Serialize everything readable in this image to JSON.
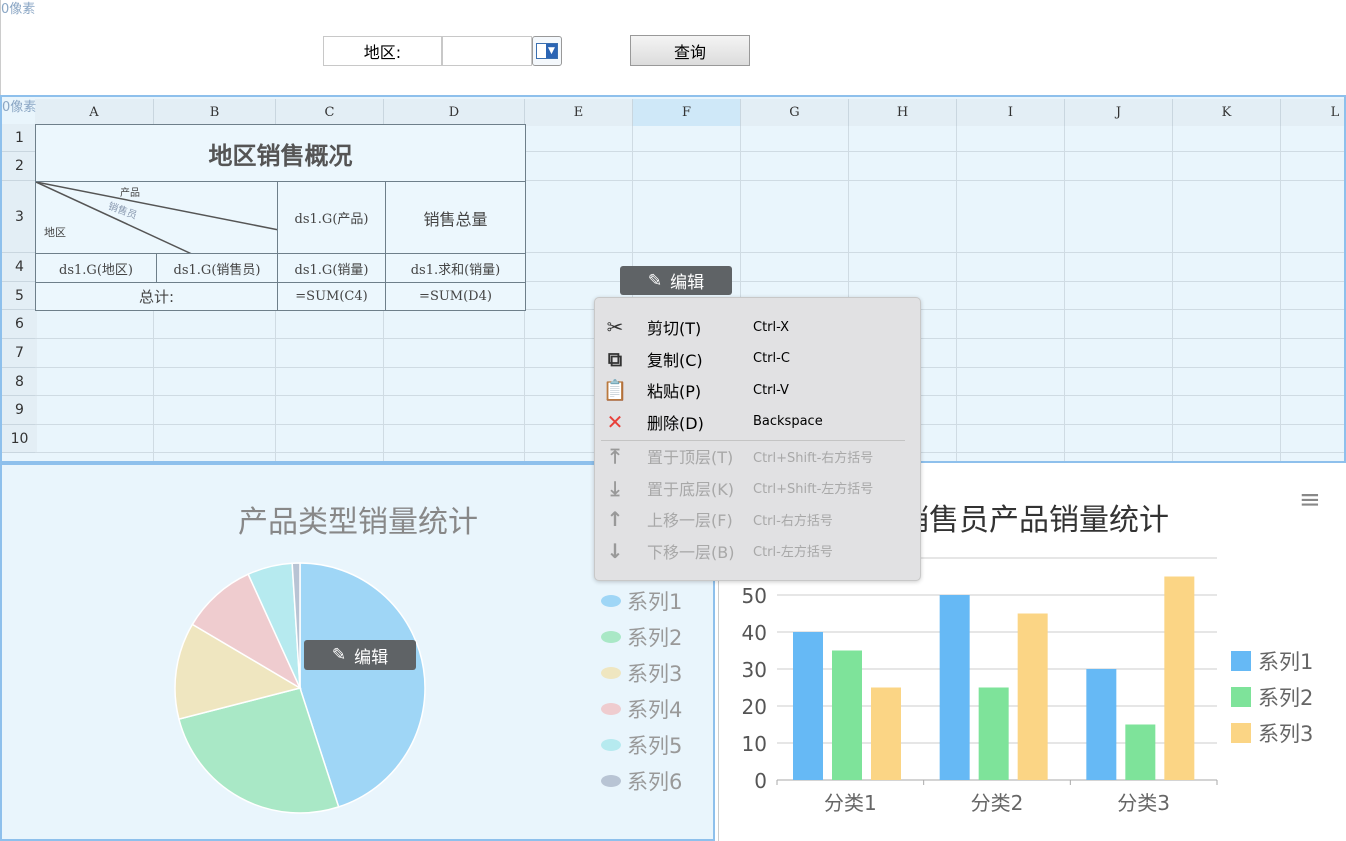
{
  "top": {
    "pixel_label": "0像素",
    "param_label": "地区:",
    "param_value": "",
    "query_label": "查询"
  },
  "sheet": {
    "pixel_label": "0像素",
    "columns": [
      "A",
      "B",
      "C",
      "D",
      "E",
      "F",
      "G",
      "H",
      "I",
      "J",
      "K",
      "L"
    ],
    "rows": [
      "1",
      "2",
      "3",
      "4",
      "5",
      "6",
      "7",
      "8",
      "9",
      "10"
    ],
    "title": "地区销售概况",
    "diag_product": "产品",
    "diag_salesman": "销售员",
    "diag_region": "地区",
    "c3": "ds1.G(产品)",
    "d3": "销售总量",
    "a4": "ds1.G(地区)",
    "b4": "ds1.G(销售员)",
    "c4": "ds1.G(销量)",
    "d4": "ds1.求和(销量)",
    "a5": "总计:",
    "c5": "=SUM(C4)",
    "d5": "=SUM(D4)"
  },
  "edit_label": "编辑",
  "menu": {
    "items": [
      {
        "icon": "scissors-icon",
        "label": "剪切(T)",
        "shortcut": "Ctrl-X",
        "enabled": true
      },
      {
        "icon": "copy-icon",
        "label": "复制(C)",
        "shortcut": "Ctrl-C",
        "enabled": true
      },
      {
        "icon": "paste-icon",
        "label": "粘贴(P)",
        "shortcut": "Ctrl-V",
        "enabled": true
      },
      {
        "icon": "delete-icon",
        "label": "删除(D)",
        "shortcut": "Backspace",
        "enabled": true
      },
      {
        "icon": "bring-to-front-icon",
        "label": "置于顶层(T)",
        "shortcut": "Ctrl+Shift-右方括号",
        "enabled": false
      },
      {
        "icon": "send-to-back-icon",
        "label": "置于底层(K)",
        "shortcut": "Ctrl+Shift-左方括号",
        "enabled": false
      },
      {
        "icon": "move-up-icon",
        "label": "上移一层(F)",
        "shortcut": "Ctrl-右方括号",
        "enabled": false
      },
      {
        "icon": "move-down-icon",
        "label": "下移一层(B)",
        "shortcut": "Ctrl-左方括号",
        "enabled": false
      }
    ]
  },
  "chart_data": [
    {
      "type": "pie",
      "title": "产品类型销量统计",
      "legend": "right",
      "series": [
        {
          "name": "系列1",
          "value": 45,
          "color": "#9fd6f6"
        },
        {
          "name": "系列2",
          "value": 26,
          "color": "#a9e8c6"
        },
        {
          "name": "系列3",
          "value": 12.5,
          "color": "#efe6c0"
        },
        {
          "name": "系列4",
          "value": 9.7,
          "color": "#efcccf"
        },
        {
          "name": "系列5",
          "value": 5.8,
          "color": "#b6eaef"
        },
        {
          "name": "系列6",
          "value": 1,
          "color": "#b8c4d4"
        }
      ]
    },
    {
      "type": "bar",
      "title": "销售员产品销量统计",
      "legend": "right",
      "categories": [
        "分类1",
        "分类2",
        "分类3"
      ],
      "ylim": [
        0,
        60
      ],
      "yticks": [
        0,
        10,
        20,
        30,
        40,
        50
      ],
      "grid": true,
      "series": [
        {
          "name": "系列1",
          "values": [
            40,
            50,
            30
          ],
          "color": "#66b9f5"
        },
        {
          "name": "系列2",
          "values": [
            35,
            25,
            15
          ],
          "color": "#7ee39a"
        },
        {
          "name": "系列3",
          "values": [
            25,
            45,
            55
          ],
          "color": "#fbd585"
        }
      ]
    }
  ]
}
